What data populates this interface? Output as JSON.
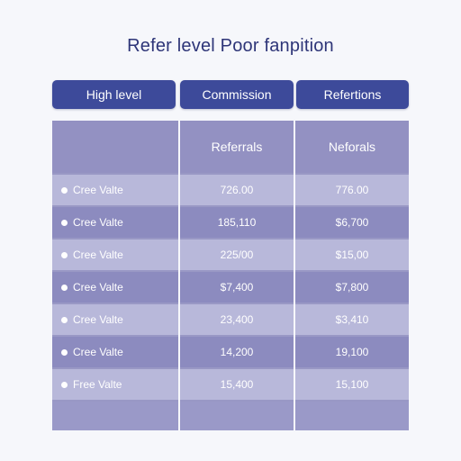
{
  "title": "Refer level Poor fanpition",
  "header_buttons": [
    "High level",
    "Commission",
    "Refertions"
  ],
  "table": {
    "columns": [
      "",
      "Referrals",
      "Neforals"
    ],
    "rows": [
      {
        "label": "Cree Valte",
        "col2": "726.00",
        "col3": "776.00"
      },
      {
        "label": "Cree Valte",
        "col2": "185,110",
        "col3": "$6,700"
      },
      {
        "label": "Cree Valte",
        "col2": "225/00",
        "col3": "$15,00"
      },
      {
        "label": "Cree Valte",
        "col2": "$7,400",
        "col3": "$7,800"
      },
      {
        "label": "Cree Valte",
        "col2": "23,400",
        "col3": "$3,410"
      },
      {
        "label": "Cree Valte",
        "col2": "14,200",
        "col3": "19,100"
      },
      {
        "label": "Free Valte",
        "col2": "15,400",
        "col3": "15,100"
      }
    ]
  },
  "colors": {
    "accent": "#3d4a9a",
    "title": "#2e3578",
    "row_light": "#b8b8da",
    "row_dark": "#8c8bbf"
  }
}
